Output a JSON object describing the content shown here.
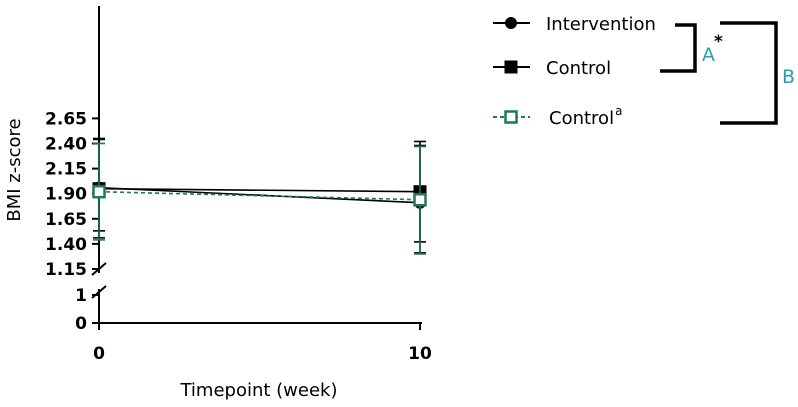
{
  "chart_data": {
    "type": "line",
    "title": "",
    "xlabel": "Timepoint (week)",
    "ylabel": "BMI z-score",
    "x": [
      0,
      10
    ],
    "x_ticks": [
      "0",
      "10"
    ],
    "y_ticks_upper": [
      "1.15",
      "1.40",
      "1.65",
      "1.90",
      "2.15",
      "2.40",
      "2.65"
    ],
    "y_ticks_lower": [
      "0",
      "1"
    ],
    "y_axis_break": [
      1,
      1.15
    ],
    "ylim": [
      0,
      2.75
    ],
    "series": [
      {
        "name": "Intervention",
        "marker": "circle",
        "line": "solid",
        "color": "#000000",
        "values": [
          1.96,
          1.81
        ],
        "error_upper": [
          2.45,
          2.38
        ],
        "error_lower": [
          1.53,
          1.42
        ]
      },
      {
        "name": "Control",
        "marker": "square",
        "line": "solid",
        "color": "#000000",
        "values": [
          1.95,
          1.92
        ],
        "error_upper": [
          2.44,
          2.42
        ],
        "error_lower": [
          1.46,
          1.31
        ]
      },
      {
        "name": "Control",
        "name_superscript": "a",
        "marker": "open-square",
        "line": "dashed",
        "color": "#1f7a4f",
        "values": [
          1.92,
          1.84
        ],
        "error_upper": [
          2.4,
          2.37
        ],
        "error_lower": [
          1.44,
          1.3
        ]
      }
    ],
    "brackets": [
      {
        "label": "A",
        "superscript": "*",
        "color": "#2a9db4"
      },
      {
        "label": "B",
        "superscript": "",
        "color": "#2a9db4"
      }
    ],
    "legend_position": "top-right"
  }
}
